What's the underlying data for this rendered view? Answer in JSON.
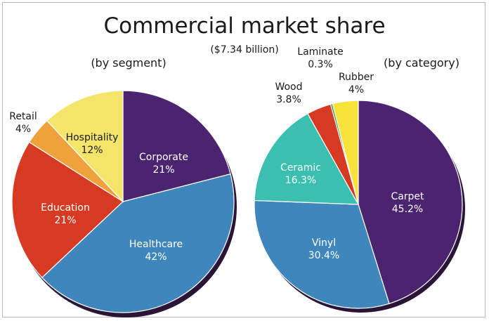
{
  "title": "Commercial market share",
  "subtitle": "($7.34 billion)",
  "chart_data": [
    {
      "type": "pie",
      "title": "(by segment)",
      "slices": [
        {
          "label": "Corporate",
          "value": 21,
          "value_label": "21%",
          "color": "#4b2470"
        },
        {
          "label": "Healthcare",
          "value": 42,
          "value_label": "42%",
          "color": "#3f86bd"
        },
        {
          "label": "Education",
          "value": 21,
          "value_label": "21%",
          "color": "#d63a22"
        },
        {
          "label": "Retail",
          "value": 4,
          "value_label": "4%",
          "color": "#f0a23a"
        },
        {
          "label": "Hospitality",
          "value": 12,
          "value_label": "12%",
          "color": "#f5e46a"
        }
      ]
    },
    {
      "type": "pie",
      "title": "(by category)",
      "slices": [
        {
          "label": "Carpet",
          "value": 45.2,
          "value_label": "45.2%",
          "color": "#4b2470"
        },
        {
          "label": "Vinyl",
          "value": 30.4,
          "value_label": "30.4%",
          "color": "#3f86bd"
        },
        {
          "label": "Ceramic",
          "value": 16.3,
          "value_label": "16.3%",
          "color": "#3bbfb0"
        },
        {
          "label": "Wood",
          "value": 3.8,
          "value_label": "3.8%",
          "color": "#d63a22"
        },
        {
          "label": "Laminate",
          "value": 0.3,
          "value_label": "0.3%",
          "color": "#2f8f3a"
        },
        {
          "label": "Rubber",
          "value": 4,
          "value_label": "4%",
          "color": "#f7e33c"
        }
      ]
    }
  ]
}
